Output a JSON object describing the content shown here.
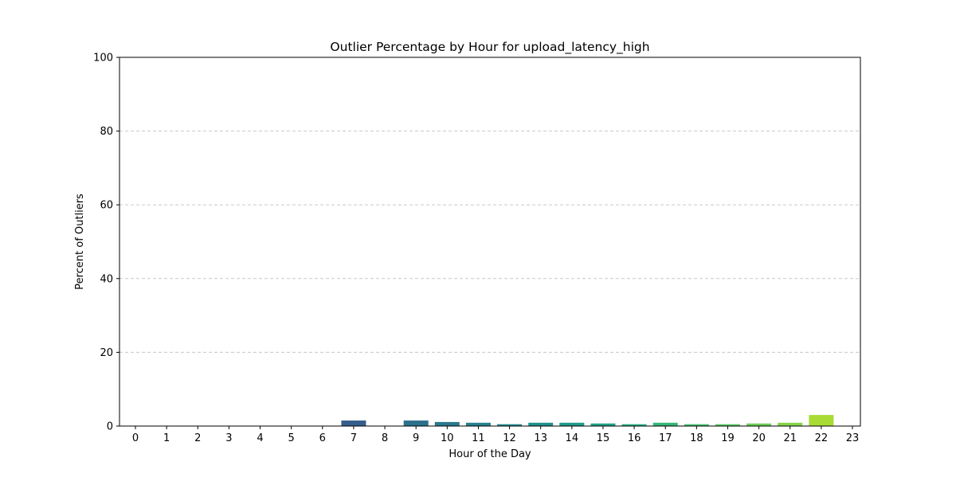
{
  "chart_data": {
    "type": "bar",
    "title": "Outlier Percentage by Hour for upload_latency_high",
    "xlabel": "Hour of the Day",
    "ylabel": "Percent of Outliers",
    "categories": [
      "0",
      "1",
      "2",
      "3",
      "4",
      "5",
      "6",
      "7",
      "8",
      "9",
      "10",
      "11",
      "12",
      "13",
      "14",
      "15",
      "16",
      "17",
      "18",
      "19",
      "20",
      "21",
      "22",
      "23"
    ],
    "values": [
      0,
      0,
      0,
      0,
      0,
      0,
      0,
      1.5,
      0,
      1.5,
      1.1,
      0.9,
      0.5,
      0.9,
      0.9,
      0.7,
      0.5,
      0.9,
      0.5,
      0.5,
      0.7,
      0.9,
      3.0,
      0
    ],
    "ylim": [
      0,
      100
    ],
    "yticks": [
      0,
      20,
      40,
      60,
      80,
      100
    ],
    "grid": "y-dashed",
    "bar_colors": [
      "#471365",
      "#481e70",
      "#472a7a",
      "#453581",
      "#423f85",
      "#3e4a89",
      "#3a538b",
      "#355e8d",
      "#31678e",
      "#2d708e",
      "#2a788e",
      "#27818e",
      "#24898e",
      "#21918c",
      "#1f9a8a",
      "#20a386",
      "#27ad81",
      "#35b779",
      "#45be71",
      "#58c765",
      "#6ece58",
      "#86d549",
      "#a8db34",
      "#bddf26"
    ]
  }
}
